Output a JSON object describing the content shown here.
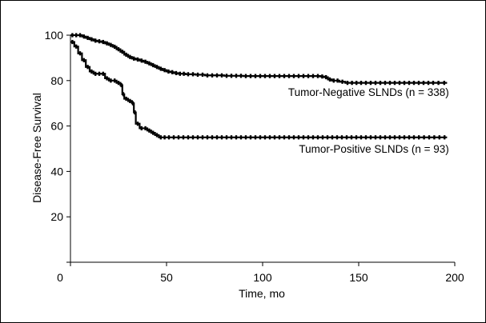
{
  "chart_data": {
    "type": "line",
    "xlabel": "Time, mo",
    "ylabel": "Disease-Free Survival",
    "xlim": [
      0,
      200
    ],
    "ylim": [
      0,
      100
    ],
    "x_ticks": [
      0,
      50,
      100,
      150,
      200
    ],
    "y_ticks": [
      20,
      40,
      60,
      80,
      100
    ],
    "grid": false,
    "legend": "none",
    "series": [
      {
        "name": "Tumor-Negative SLNDs (n = 338)",
        "color": "#000000",
        "label_anchor_x": 197,
        "label_anchor_y": 75,
        "points": [
          [
            0,
            100
          ],
          [
            2,
            100
          ],
          [
            4,
            100
          ],
          [
            6,
            99.4
          ],
          [
            8,
            98.8
          ],
          [
            10,
            98.2
          ],
          [
            12,
            97.6
          ],
          [
            14,
            97.3
          ],
          [
            16,
            97
          ],
          [
            18,
            96.4
          ],
          [
            20,
            95.7
          ],
          [
            22,
            94.9
          ],
          [
            24,
            93.8
          ],
          [
            26,
            92.7
          ],
          [
            28,
            91.4
          ],
          [
            30,
            90.4
          ],
          [
            32,
            89.7
          ],
          [
            34,
            89.3
          ],
          [
            36,
            88.8
          ],
          [
            38,
            88.3
          ],
          [
            40,
            87.6
          ],
          [
            42,
            86.8
          ],
          [
            44,
            86
          ],
          [
            46,
            85.2
          ],
          [
            48,
            84.6
          ],
          [
            50,
            84
          ],
          [
            52,
            83.7
          ],
          [
            54,
            83.3
          ],
          [
            56,
            83
          ],
          [
            60,
            82.8
          ],
          [
            65,
            82.6
          ],
          [
            70,
            82.3
          ],
          [
            80,
            82.1
          ],
          [
            90,
            82
          ],
          [
            100,
            82
          ],
          [
            110,
            82
          ],
          [
            120,
            82
          ],
          [
            130,
            81.8
          ],
          [
            132,
            81.5
          ],
          [
            134,
            80.5
          ],
          [
            136,
            80
          ],
          [
            140,
            79.5
          ],
          [
            143,
            79
          ],
          [
            150,
            79
          ],
          [
            160,
            79
          ],
          [
            170,
            79
          ],
          [
            180,
            79
          ],
          [
            190,
            79
          ],
          [
            196,
            79
          ]
        ]
      },
      {
        "name": "Tumor-Positive SLNDs (n = 93)",
        "color": "#000000",
        "label_anchor_x": 197,
        "label_anchor_y": 50,
        "points": [
          [
            0,
            97
          ],
          [
            2,
            95
          ],
          [
            4,
            92
          ],
          [
            6,
            89
          ],
          [
            8,
            86
          ],
          [
            10,
            84
          ],
          [
            12,
            83
          ],
          [
            16,
            83
          ],
          [
            18,
            81
          ],
          [
            20,
            80
          ],
          [
            24,
            79
          ],
          [
            26,
            78
          ],
          [
            27,
            74
          ],
          [
            28,
            72
          ],
          [
            30,
            71
          ],
          [
            32,
            70
          ],
          [
            33,
            66
          ],
          [
            34,
            61
          ],
          [
            36,
            59
          ],
          [
            40,
            58
          ],
          [
            42,
            57
          ],
          [
            44,
            56
          ],
          [
            46,
            55
          ],
          [
            50,
            55
          ],
          [
            60,
            55
          ],
          [
            80,
            55
          ],
          [
            100,
            55
          ],
          [
            120,
            55
          ],
          [
            140,
            55
          ],
          [
            160,
            55
          ],
          [
            180,
            55
          ],
          [
            196,
            55
          ]
        ]
      }
    ]
  }
}
